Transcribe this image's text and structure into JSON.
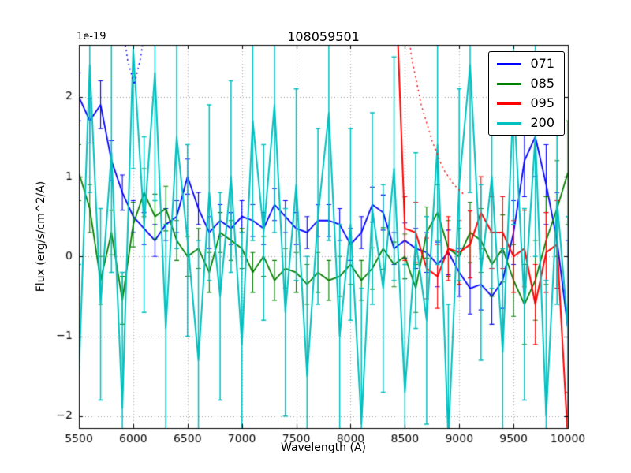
{
  "chart_data": {
    "type": "line",
    "title": "108059501",
    "xlabel": "Wavelength (A)",
    "ylabel": "Flux (erg/s/cm^2/A)",
    "offset_text": "1e-19",
    "xlim": [
      5500,
      10000
    ],
    "ylim": [
      -2.15,
      2.65
    ],
    "xticks": [
      5500,
      6000,
      6500,
      7000,
      7500,
      8000,
      8500,
      9000,
      9500,
      10000
    ],
    "xtick_labels": [
      "5500",
      "6000",
      "6500",
      "7000",
      "7500",
      "8000",
      "8500",
      "9000",
      "9500",
      "10000"
    ],
    "yticks": [
      -2,
      -1,
      0,
      1,
      2
    ],
    "ytick_labels": [
      "−2",
      "−1",
      "0",
      "1",
      "2"
    ],
    "grid": true,
    "grid_color": "#999999",
    "legend_position": "upper right",
    "x": [
      5500,
      5600,
      5700,
      5800,
      5900,
      6000,
      6100,
      6200,
      6300,
      6400,
      6500,
      6600,
      6700,
      6800,
      6900,
      7000,
      7100,
      7200,
      7300,
      7400,
      7500,
      7600,
      7700,
      7800,
      7900,
      8000,
      8100,
      8200,
      8300,
      8400,
      8500,
      8600,
      8700,
      8800,
      8900,
      9000,
      9100,
      9200,
      9300,
      9400,
      9500,
      9600,
      9700,
      9800,
      9900,
      10000
    ],
    "series": [
      {
        "name": "071",
        "color": "#0000ff",
        "line_width": 1.8,
        "values": [
          2.0,
          1.7,
          1.9,
          1.2,
          0.8,
          0.5,
          0.35,
          0.2,
          0.4,
          0.5,
          1.0,
          0.6,
          0.3,
          0.45,
          0.35,
          0.5,
          0.45,
          0.35,
          0.65,
          0.5,
          0.35,
          0.3,
          0.45,
          0.45,
          0.4,
          0.15,
          0.3,
          0.65,
          0.55,
          0.1,
          0.2,
          0.1,
          0.05,
          -0.1,
          0.05,
          -0.2,
          -0.4,
          -0.35,
          -0.5,
          -0.3,
          0.3,
          1.2,
          1.5,
          0.9,
          0.2,
          -0.9
        ],
        "errors": [
          0.3,
          0.28,
          0.3,
          0.25,
          0.22,
          0.2,
          0.2,
          0.2,
          0.2,
          0.2,
          0.22,
          0.2,
          0.2,
          0.2,
          0.2,
          0.2,
          0.2,
          0.2,
          0.2,
          0.2,
          0.2,
          0.2,
          0.2,
          0.2,
          0.2,
          0.2,
          0.2,
          0.22,
          0.22,
          0.2,
          0.22,
          0.25,
          0.25,
          0.28,
          0.28,
          0.3,
          0.32,
          0.32,
          0.35,
          0.35,
          0.4,
          0.45,
          0.5,
          0.5,
          0.6,
          1.1
        ]
      },
      {
        "name": "085",
        "color": "#007f00",
        "line_width": 1.8,
        "values": [
          1.05,
          0.6,
          -0.3,
          0.3,
          -0.55,
          0.4,
          0.8,
          0.5,
          0.6,
          0.2,
          0.0,
          0.1,
          -0.2,
          0.3,
          0.2,
          0.1,
          -0.2,
          0.0,
          -0.3,
          -0.15,
          -0.2,
          -0.35,
          -0.2,
          -0.3,
          -0.25,
          -0.1,
          -0.3,
          -0.15,
          0.1,
          -0.1,
          0.0,
          -0.4,
          0.3,
          0.55,
          0.1,
          0.0,
          0.3,
          0.2,
          -0.1,
          0.1,
          -0.3,
          -0.6,
          -0.3,
          0.2,
          0.6,
          1.05
        ],
        "errors": [
          0.35,
          0.3,
          0.3,
          0.28,
          0.3,
          0.28,
          0.3,
          0.28,
          0.28,
          0.25,
          0.25,
          0.25,
          0.25,
          0.25,
          0.25,
          0.25,
          0.25,
          0.25,
          0.25,
          0.25,
          0.25,
          0.25,
          0.25,
          0.25,
          0.25,
          0.25,
          0.25,
          0.26,
          0.26,
          0.28,
          0.28,
          0.3,
          0.32,
          0.35,
          0.35,
          0.35,
          0.38,
          0.4,
          0.4,
          0.42,
          0.45,
          0.5,
          0.5,
          0.55,
          0.6,
          0.65
        ]
      },
      {
        "name": "095",
        "color": "#ff0000",
        "line_width": 2.0,
        "values": [
          null,
          null,
          null,
          null,
          null,
          null,
          null,
          null,
          null,
          null,
          null,
          null,
          null,
          null,
          null,
          null,
          null,
          null,
          null,
          null,
          null,
          null,
          null,
          null,
          null,
          null,
          null,
          null,
          null,
          4.0,
          0.35,
          0.3,
          -0.15,
          -0.25,
          0.1,
          0.05,
          0.15,
          0.55,
          0.3,
          0.3,
          0.0,
          0.1,
          -0.6,
          0.05,
          0.15,
          -2.3
        ],
        "errors": [
          null,
          null,
          null,
          null,
          null,
          null,
          null,
          null,
          null,
          null,
          null,
          null,
          null,
          null,
          null,
          null,
          null,
          null,
          null,
          null,
          null,
          null,
          null,
          null,
          null,
          null,
          null,
          null,
          null,
          0.5,
          0.4,
          0.38,
          0.38,
          0.4,
          0.4,
          0.4,
          0.42,
          0.45,
          0.45,
          0.45,
          0.45,
          0.48,
          0.5,
          0.5,
          0.55,
          0.6
        ]
      },
      {
        "name": "200",
        "color": "#00bfbf",
        "line_width": 2.0,
        "values": [
          -1.5,
          2.4,
          -0.6,
          1.3,
          -1.9,
          2.6,
          0.4,
          2.3,
          -0.9,
          1.5,
          0.2,
          -1.3,
          0.8,
          -0.5,
          1.0,
          -1.1,
          1.7,
          0.3,
          1.9,
          -0.7,
          0.9,
          -1.5,
          0.5,
          1.8,
          -1.0,
          0.4,
          -2.1,
          0.6,
          -0.4,
          1.1,
          -1.7,
          0.2,
          -0.8,
          1.4,
          -2.3,
          0.9,
          2.4,
          -0.2,
          1.0,
          -1.2,
          2.0,
          -0.6,
          1.5,
          -2.0,
          0.7,
          -0.9
        ],
        "errors": [
          1.4,
          1.6,
          1.2,
          1.5,
          1.7,
          1.5,
          1.1,
          1.6,
          1.3,
          1.4,
          1.2,
          1.5,
          1.1,
          1.3,
          1.2,
          1.4,
          1.5,
          1.1,
          1.6,
          1.3,
          1.2,
          1.5,
          1.1,
          1.6,
          1.4,
          1.2,
          1.7,
          1.2,
          1.3,
          1.4,
          1.6,
          1.1,
          1.3,
          1.5,
          1.7,
          1.2,
          1.6,
          1.1,
          1.4,
          1.3,
          1.6,
          1.2,
          1.5,
          1.7,
          1.3,
          1.4
        ]
      }
    ],
    "dotted_curves": [
      {
        "name": "095-noise-dotted",
        "color": "#ff0000",
        "x": [
          8500,
          8560,
          8650,
          8750,
          8850,
          8950,
          9040
        ],
        "y": [
          3.2,
          2.5,
          1.9,
          1.45,
          1.1,
          0.9,
          0.78
        ]
      },
      {
        "name": "blue-noise-dotted",
        "color": "#0000ff",
        "x": [
          5890,
          5950,
          6010,
          6070,
          6130
        ],
        "y": [
          3.0,
          2.45,
          2.15,
          2.5,
          3.1
        ]
      }
    ],
    "legend": [
      {
        "label": "071",
        "color": "#0000ff"
      },
      {
        "label": "085",
        "color": "#007f00"
      },
      {
        "label": "095",
        "color": "#ff0000"
      },
      {
        "label": "200",
        "color": "#00bfbf"
      }
    ]
  }
}
